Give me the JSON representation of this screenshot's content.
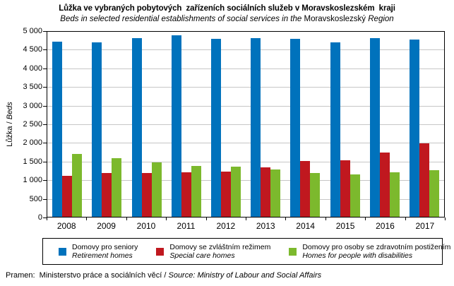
{
  "subtitle": {
    "part1_italic": "Beds in selected residential establishments of social services in the ",
    "part2_upright": "Moravskoslezský",
    "part3_italic": " Region"
  },
  "y_axis": {
    "title_czech": "Lůžka / ",
    "title_english_italic": "Beds",
    "tick_labels": [
      "5 000",
      "4 500",
      "4 000",
      "3 500",
      "3 000",
      "2 500",
      "2 000",
      "1 500",
      "1 000",
      "500",
      "0"
    ]
  },
  "footer": {
    "label_czech": "Pramen:  Ministerstvo práce a sociálních věcí / ",
    "label_english_italic": "Source: Ministry of Labour and Social Affairs"
  },
  "chart_data": {
    "type": "bar",
    "title": "Lůžka ve vybraných pobytových  zařízeních sociálních služeb v Moravskoslezském  kraji",
    "subtitle": "Beds in selected residential establishments of social services in the Moravskoslezský Region",
    "ylabel": "Lůžka / Beds",
    "ylim": [
      0,
      5000
    ],
    "ytick_step": 500,
    "grid": true,
    "legend_position": "bottom",
    "gridline_color": "#c6c6c6",
    "categories": [
      "2008",
      "2009",
      "2010",
      "2011",
      "2012",
      "2013",
      "2014",
      "2015",
      "2016",
      "2017"
    ],
    "series": [
      {
        "name": "Domovy pro seniory",
        "name_en": "Retirement homes",
        "color": "#0072BC",
        "values": [
          4690,
          4670,
          4800,
          4860,
          4780,
          4790,
          4775,
          4670,
          4795,
          4755
        ]
      },
      {
        "name": "Domovy se zvláštním režimem",
        "name_en": "Special care homes",
        "color": "#C0181F",
        "values": [
          1090,
          1170,
          1175,
          1200,
          1215,
          1330,
          1500,
          1520,
          1720,
          1965
        ]
      },
      {
        "name": "Domovy pro osoby se zdravotním postižením",
        "name_en": "Homes for people with disabilities",
        "color": "#7CB92D",
        "values": [
          1690,
          1580,
          1460,
          1360,
          1345,
          1270,
          1175,
          1130,
          1200,
          1245
        ]
      }
    ]
  }
}
